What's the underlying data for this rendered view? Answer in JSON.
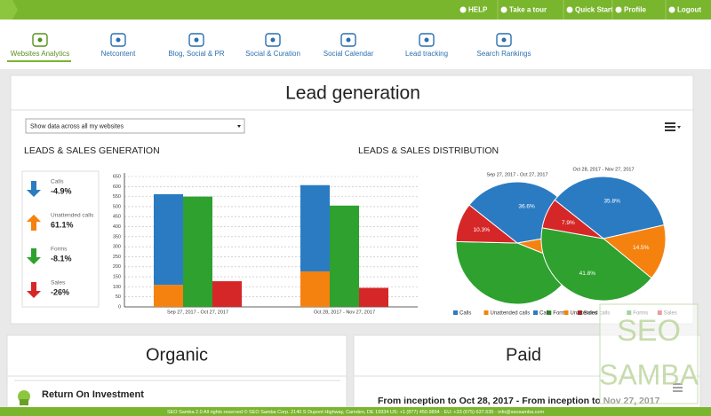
{
  "topbar": {
    "links": [
      "HELP",
      "Take a tour",
      "Quick Start",
      "Profile",
      "Logout"
    ]
  },
  "tabs": [
    "Websites Analytics",
    "Netcontent",
    "Blog, Social & PR",
    "Social & Curation",
    "Social Calendar",
    "Lead tracking",
    "Search Rankings"
  ],
  "title": "Lead generation",
  "selector": "Show data across all my websites",
  "distribution_heading": "LEADS & SALES DISTRIBUTION",
  "kpis": [
    {
      "label": "Calls",
      "change": "-4.9%"
    },
    {
      "label": "Unattended calls",
      "change": "61.1%"
    },
    {
      "label": "Forms",
      "change": "-8.1%"
    },
    {
      "label": "Sales",
      "change": "-26%"
    }
  ],
  "chart_data": [
    {
      "type": "bar",
      "title": "LEADS & SALES GENERATION",
      "categories": [
        "Sep 27, 2017 - Oct 27, 2017",
        "Oct 28, 2017 - Nov 27, 2017"
      ],
      "series": [
        {
          "color": "#f5820f",
          "stack": 0,
          "values": [
            110,
            177
          ]
        },
        {
          "color": "#2b7bc2",
          "stack": 0,
          "values": [
            452,
            430
          ]
        },
        {
          "color": "#2ea12e",
          "stack": 1,
          "values": [
            550,
            505
          ]
        },
        {
          "color": "#d62728",
          "stack": 2,
          "values": [
            128,
            95
          ]
        }
      ],
      "ylim": [
        0,
        650
      ],
      "yticks": [
        0,
        50,
        100,
        150,
        200,
        250,
        300,
        350,
        400,
        450,
        500,
        550,
        600,
        650
      ],
      "grid": true
    },
    {
      "type": "pie",
      "title": "Sep 27, 2017 - Oct 27, 2017",
      "categories": [
        "Calls",
        "Unattended calls",
        "Forms",
        "Sales"
      ],
      "colors": [
        "#2b7bc2",
        "#f5820f",
        "#2ea12e",
        "#d62728"
      ],
      "values": [
        36.6,
        8.8,
        44.3,
        10.3
      ],
      "value_labels": [
        "36.6%",
        "8.8%",
        null,
        "10.3%"
      ]
    },
    {
      "type": "pie",
      "title": "Oct 28, 2017 - Nov 27, 2017",
      "categories": [
        "Calls",
        "Unattended calls",
        "Forms",
        "Sales"
      ],
      "colors": [
        "#2b7bc2",
        "#f5820f",
        "#2ea12e",
        "#d62728"
      ],
      "values": [
        35.8,
        14.5,
        41.8,
        7.9
      ],
      "value_labels": [
        "35.8%",
        "14.5%",
        "41.8%",
        "7.9%"
      ]
    }
  ],
  "sections": {
    "organic": "Organic",
    "paid": "Paid",
    "roi": "Return On Investment",
    "paid_text": "From inception to Oct 28, 2017 - From inception to Nov 27, 2017"
  },
  "watermark": [
    "SEO",
    "SAMBA"
  ],
  "footer": "SEO Samba 2.0  All rights reserved © SEO Samba Corp. 2140 S Dupont Highway, Camden, DE 19934 US: +1 (877) 450.9894 · EU: +33 (675) 637.635 · info@seosamba.com"
}
